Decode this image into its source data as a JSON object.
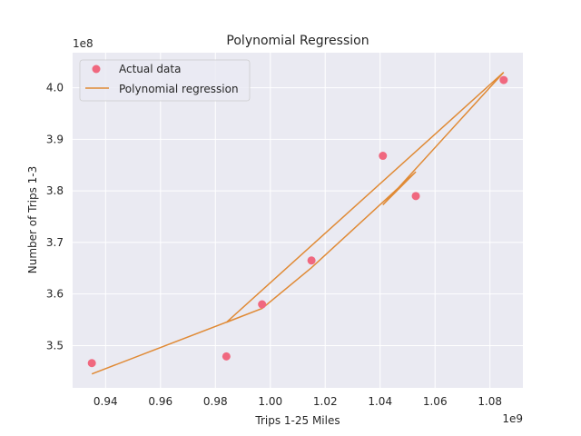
{
  "chart_data": {
    "type": "scatter",
    "title": "Polynomial Regression",
    "xlabel": "Trips 1-25 Miles",
    "ylabel": "Number of Trips 1-3",
    "x_offset_label": "1e9",
    "y_offset_label": "1e8",
    "x_scale": 1000000000,
    "y_scale": 100000000,
    "xlim": [
      0.928,
      1.092
    ],
    "ylim": [
      3.418,
      4.068
    ],
    "x_ticks": [
      0.94,
      0.96,
      0.98,
      1.0,
      1.02,
      1.04,
      1.06,
      1.08
    ],
    "x_tick_labels": [
      "0.94",
      "0.96",
      "0.98",
      "1.00",
      "1.02",
      "1.04",
      "1.06",
      "1.08"
    ],
    "y_ticks": [
      3.5,
      3.6,
      3.7,
      3.8,
      3.9,
      4.0
    ],
    "y_tick_labels": [
      "3.5",
      "3.6",
      "3.7",
      "3.8",
      "3.9",
      "4.0"
    ],
    "grid": true,
    "legend_position": "top-left",
    "series": [
      {
        "name": "Actual data",
        "kind": "scatter",
        "color": "#f0687f",
        "points": [
          {
            "x": 0.935,
            "y": 3.466
          },
          {
            "x": 0.984,
            "y": 3.479
          },
          {
            "x": 0.997,
            "y": 3.58
          },
          {
            "x": 1.015,
            "y": 3.665
          },
          {
            "x": 1.041,
            "y": 3.868
          },
          {
            "x": 1.053,
            "y": 3.79
          },
          {
            "x": 1.085,
            "y": 4.015
          }
        ]
      },
      {
        "name": "Polynomial regression",
        "kind": "line",
        "color": "#e08a35",
        "points": [
          {
            "x": 0.935,
            "y": 3.445
          },
          {
            "x": 0.997,
            "y": 3.572
          },
          {
            "x": 1.015,
            "y": 3.651
          },
          {
            "x": 1.053,
            "y": 3.837
          },
          {
            "x": 1.041,
            "y": 3.773
          },
          {
            "x": 1.085,
            "y": 4.03
          },
          {
            "x": 0.984,
            "y": 3.545
          },
          {
            "x": 0.997,
            "y": 3.572
          }
        ]
      }
    ]
  }
}
